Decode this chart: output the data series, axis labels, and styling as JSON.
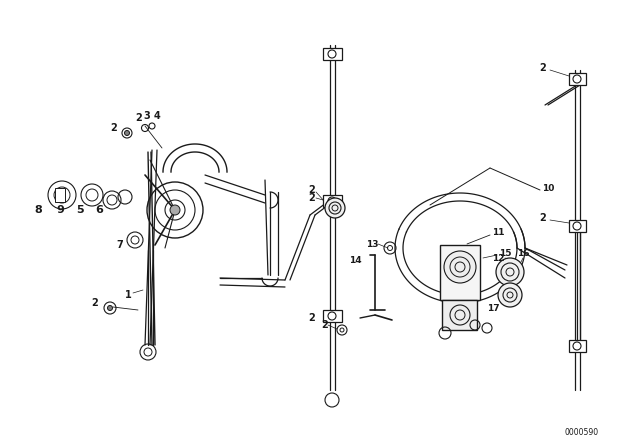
{
  "background_color": "#ffffff",
  "line_color": "#1a1a1a",
  "figure_width": 6.4,
  "figure_height": 4.48,
  "dpi": 100,
  "watermark": "0000590",
  "title_color": "#1a1a1a"
}
